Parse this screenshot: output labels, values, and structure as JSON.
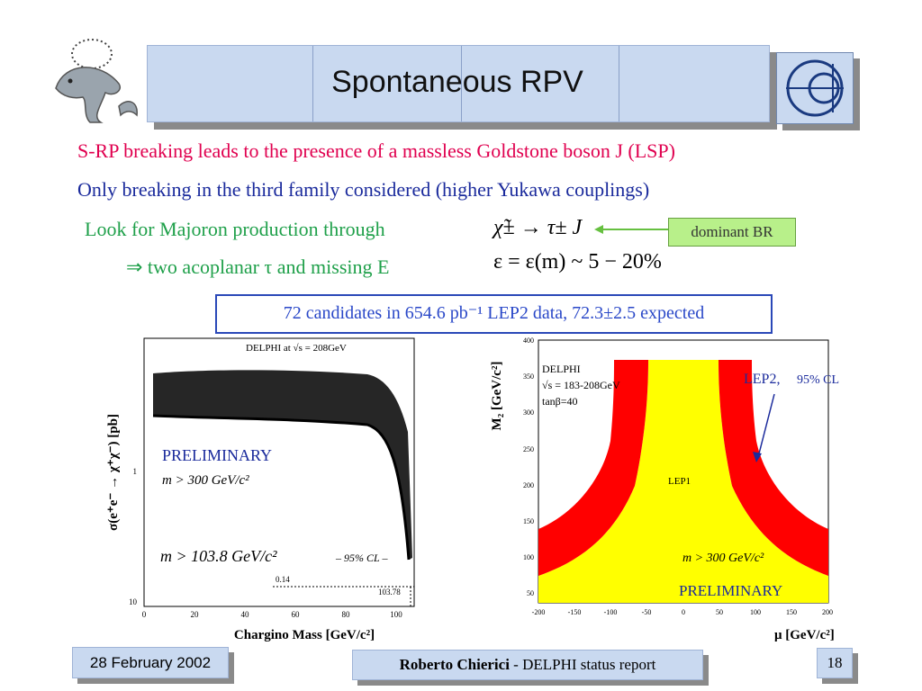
{
  "title": "Spontaneous RPV",
  "lines": {
    "l1": "S-RP breaking leads to the presence of a massless Goldstone boson J (LSP)",
    "l2": "Only breaking in the third family considered (higher Yukawa couplings)",
    "l3": "Look for Majoron production through",
    "l4": "⇒ two acoplanar τ and missing E"
  },
  "formulas": {
    "decay": "χ̃± → τ± J",
    "eff": "ε = ε(m) ~ 5 − 20%"
  },
  "br_label": "dominant BR",
  "candidates": "72 candidates in 654.6 pb⁻¹ LEP2 data, 72.3±2.5 expected",
  "left_plot": {
    "header": "DELPHI at √s = 208GeV",
    "ylabel": "σ(e⁺e⁻ → χ⁺χ⁻) [pb]",
    "xlabel": "Chargino Mass [GeV/c²]",
    "prelim": "PRELIMINARY",
    "sneutrino": "m > 300 GeV/c²",
    "limit": "m > 103.8 GeV/c²",
    "limit_cl": "– 95% CL –",
    "marker_val": "0.14",
    "marker_mass": "103.78",
    "xticks": [
      "0",
      "20",
      "40",
      "60",
      "80",
      "100"
    ],
    "yticks": [
      "1",
      "10"
    ]
  },
  "right_plot": {
    "header1": "DELPHI",
    "header2": "√s = 183-208GeV",
    "header3": "tanβ=40",
    "ylabel": "M₂ [GeV/c²]",
    "xlabel": "μ [GeV/c²]",
    "lep2": "LEP2,",
    "cl": "95% CL",
    "lep1": "LEP1",
    "sneutrino": "m > 300 GeV/c²",
    "prelim": "PRELIMINARY",
    "xticks": [
      "-200",
      "-150",
      "-100",
      "-50",
      "0",
      "50",
      "100",
      "150",
      "200"
    ],
    "yticks": [
      "50",
      "100",
      "150",
      "200",
      "250",
      "300",
      "350",
      "400"
    ]
  },
  "footer": {
    "date": "28 February 2002",
    "author_bold": "Roberto Chierici",
    "author_rest": " - DELPHI status report",
    "page": "18"
  },
  "colors": {
    "magenta": "#e0004f",
    "navy": "#1a2a9c",
    "green": "#1fa04a",
    "red": "#ff0000",
    "yellow": "#ffff00",
    "blue": "#2a48c8"
  }
}
